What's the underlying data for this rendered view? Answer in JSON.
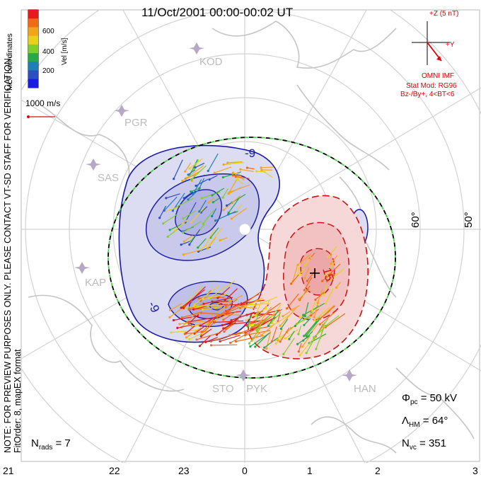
{
  "title": "11/Oct/2001 00:00-00:02 UT",
  "mlt_label": "MLT coordinates",
  "colorbar": {
    "label": "Vel [m/s]",
    "ticks": [
      "600",
      "400",
      "200"
    ],
    "colors": [
      "#e41b1b",
      "#f26a16",
      "#f3a51a",
      "#e8d11c",
      "#7fcf2a",
      "#26a946",
      "#1f7fb4",
      "#2a4fc0",
      "#1a1ae0"
    ]
  },
  "velocity_scale": "1000 m/s",
  "note_lines": [
    "NOTE: FOR PREVIEW PURPOSES ONLY. PLEASE CONTACT VT-SD STAFF FOR VERIFICATION.",
    "FitOrder: 8,  mapEX format"
  ],
  "imf": {
    "z_label": "+Z (5 nT)",
    "y_label": "+Y",
    "source": "OMNI IMF",
    "model": "Stat Mod: RG96",
    "condition": "Bz-/By+, 4<BT<6"
  },
  "stats": {
    "phi_pc": "Φ",
    "phi_pc_sub": "pc",
    "phi_pc_value": "= 50 kV",
    "lambda_hm": "Λ",
    "lambda_hm_sub": "HM",
    "lambda_hm_value": "= 64°",
    "n_vc": "N",
    "n_vc_sub": "vc",
    "n_vc_value": "= 351",
    "n_rads": "N",
    "n_rads_sub": "rads",
    "n_rads_value": "= 7"
  },
  "mlt_ticks": [
    "21",
    "22",
    "23",
    "0",
    "1",
    "2",
    "3"
  ],
  "lat_labels": [
    "60°",
    "50°"
  ],
  "stations": [
    "KOD",
    "PGR",
    "SAS",
    "KAP",
    "STO",
    "PYK",
    "HAN"
  ],
  "contour_labels": [
    "-9",
    "-9",
    "15"
  ],
  "colors": {
    "negative": "#1a1aa8",
    "positive": "#d01010",
    "negative_fill": "#dcdcf2",
    "positive_fill": "#f7d8d8",
    "boundary": "#45d645",
    "coast": "#c4c4c4",
    "grid": "#d2d2d2"
  }
}
